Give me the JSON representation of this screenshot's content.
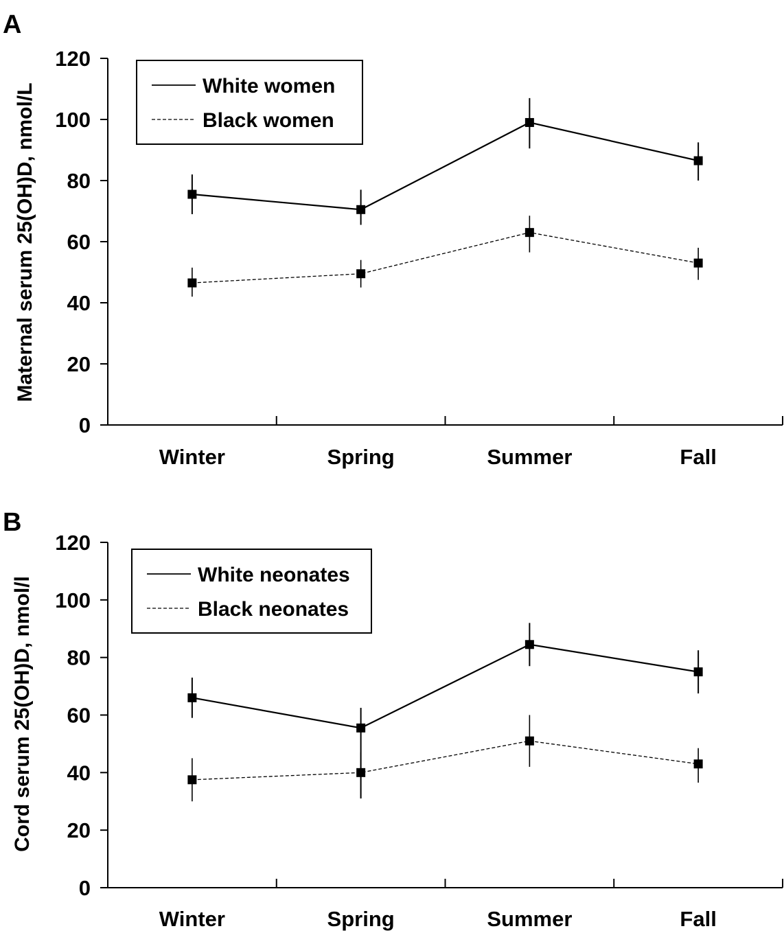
{
  "chart_data": [
    {
      "panel_label": "A",
      "type": "line",
      "ylabel": "Maternal serum 25(OH)D, nmol/L",
      "xlabel": "",
      "categories": [
        "Winter",
        "Spring",
        "Summer",
        "Fall"
      ],
      "ylim": [
        0,
        120
      ],
      "yticks": [
        "0",
        "20",
        "40",
        "60",
        "80",
        "100",
        "120"
      ],
      "legend_position": "top-left",
      "grid": false,
      "series": [
        {
          "name": "White women",
          "style": "solid",
          "values": [
            75.5,
            70.5,
            99,
            86.5
          ],
          "error_low": [
            69,
            65.5,
            90.5,
            80
          ],
          "error_high": [
            82,
            77,
            107,
            92.5
          ]
        },
        {
          "name": "Black women",
          "style": "dashed",
          "values": [
            46.5,
            49.5,
            63,
            53
          ],
          "error_low": [
            42,
            45,
            56.5,
            47.5
          ],
          "error_high": [
            51.5,
            54,
            68.5,
            58
          ]
        }
      ]
    },
    {
      "panel_label": "B",
      "type": "line",
      "ylabel": "Cord serum 25(OH)D, nmol/l",
      "xlabel": "",
      "categories": [
        "Winter",
        "Spring",
        "Summer",
        "Fall"
      ],
      "ylim": [
        0,
        120
      ],
      "yticks": [
        "0",
        "20",
        "40",
        "60",
        "80",
        "100",
        "120"
      ],
      "legend_position": "top-left",
      "grid": false,
      "series": [
        {
          "name": "White neonates",
          "style": "solid",
          "values": [
            66,
            55.5,
            84.5,
            75
          ],
          "error_low": [
            59,
            31,
            77,
            67.5
          ],
          "error_high": [
            73,
            62.5,
            92,
            82.5
          ]
        },
        {
          "name": "Black neonates",
          "style": "dashed",
          "values": [
            37.5,
            40,
            51,
            43
          ],
          "error_low": [
            30,
            31,
            42,
            36.5
          ],
          "error_high": [
            45,
            47,
            60,
            48.5
          ]
        }
      ]
    }
  ]
}
